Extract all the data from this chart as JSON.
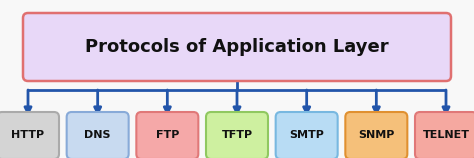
{
  "title": "Protocols of Application Layer",
  "title_box_facecolor": "#e8d8f8",
  "title_box_edgecolor": "#e07070",
  "title_text_color": "#111111",
  "bg_color": "#f8f8f8",
  "arrow_color": "#2255aa",
  "protocols": [
    "HTTP",
    "DNS",
    "FTP",
    "TFTP",
    "SMTP",
    "SNMP",
    "TELNET"
  ],
  "box_facecolors": [
    "#d4d4d4",
    "#c8daf0",
    "#f5a8a8",
    "#cef0a0",
    "#b8dcf4",
    "#f5c07a",
    "#f5a8a0"
  ],
  "box_edgecolors": [
    "#aaaaaa",
    "#88aad8",
    "#e07878",
    "#90c860",
    "#78b8e0",
    "#e09030",
    "#e07878"
  ],
  "title_fontsize": 13,
  "proto_fontsize": 8
}
